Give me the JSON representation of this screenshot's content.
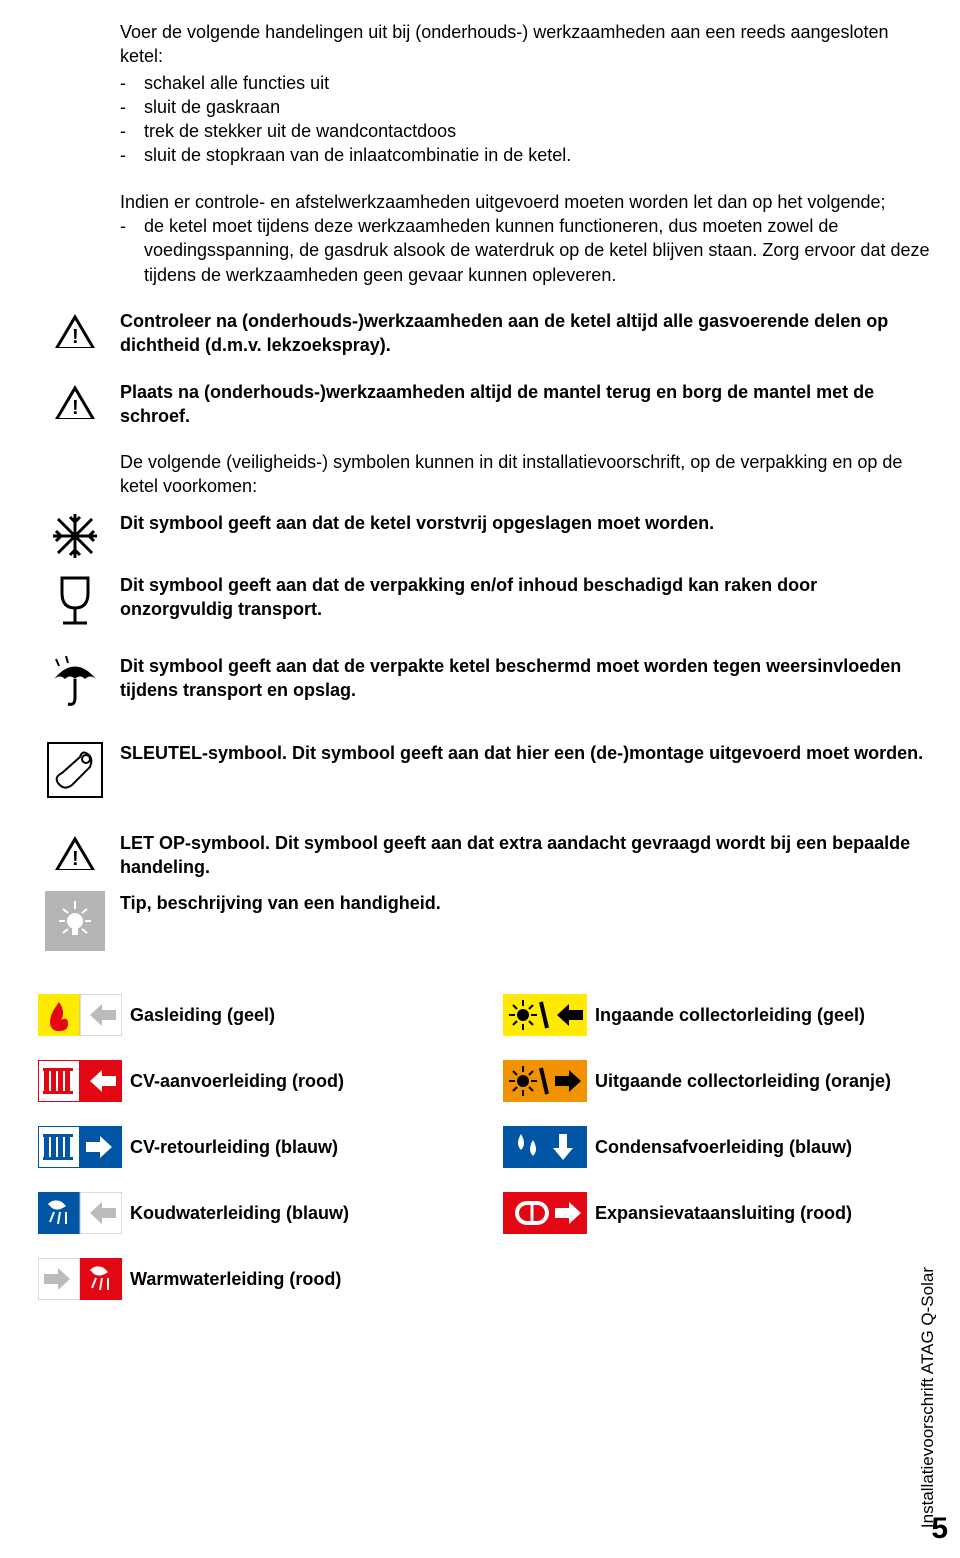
{
  "intro_para": "Voer de volgende handelingen uit bij (onderhouds-) werkzaamheden aan een reeds aangesloten ketel:",
  "intro_bullets": [
    "schakel alle functies uit",
    "sluit de gaskraan",
    "trek de stekker uit de wandcontactdoos",
    "sluit de stopkraan van de inlaatcombinatie in de ketel."
  ],
  "para2a": "Indien er controle- en afstelwerkzaamheden uitgevoerd moeten worden let dan op het volgende;",
  "para2_bullet": "de ketel moet tijdens deze werkzaamheden kunnen functioneren, dus moeten zowel de voedingsspanning, de gasdruk alsook de waterdruk op de ketel blijven staan. Zorg ervoor dat deze tijdens de werkzaamheden geen gevaar kunnen opleveren.",
  "warn1": "Controleer na (onderhouds-)werkzaamheden aan de ketel altijd alle gasvoerende delen op dichtheid (d.m.v. lekzoekspray).",
  "warn2": "Plaats na (onderhouds-)werkzaamheden altijd de mantel terug en borg de mantel met de schroef.",
  "para3": "De volgende (veiligheids-) symbolen kunnen in dit installatievoorschrift, op de verpakking en op de ketel voorkomen:",
  "sym_frost": "Dit symbool geeft aan dat de ketel vorstvrij opgeslagen moet worden.",
  "sym_glass": "Dit symbool geeft aan dat de verpakking en/of inhoud beschadigd kan raken door onzorgvuldig transport.",
  "sym_umbrella": "Dit symbool geeft aan dat de verpakte ketel beschermd moet worden tegen weersinvloeden tijdens transport en opslag.",
  "sym_wrench": "SLEUTEL-symbool. Dit symbool geeft aan dat hier een (de-)montage uitgevoerd moet worden.",
  "sym_attention": "LET OP-symbool. Dit symbool geeft aan dat extra aandacht gevraagd wordt bij een bepaalde handeling.",
  "sym_tip": "Tip, beschrijving van een handigheid.",
  "legend_left": [
    {
      "label": "Gasleiding (geel)",
      "c1": "#ffea00",
      "c2": "#ffffff",
      "type": "flame-left"
    },
    {
      "label": "CV-aanvoerleiding (rood)",
      "c1": "#ffffff",
      "c2": "#e30613",
      "type": "radiator-left"
    },
    {
      "label": "CV-retourleiding (blauw)",
      "c1": "#ffffff",
      "c2": "#0055a4",
      "type": "radiator-right"
    },
    {
      "label": "Koudwaterleiding (blauw)",
      "c1": "#0055a4",
      "c2": "#ffffff",
      "type": "shower-left"
    },
    {
      "label": "Warmwaterleiding (rood)",
      "c1": "#ffffff",
      "c2": "#e30613",
      "type": "shower-right"
    }
  ],
  "legend_right": [
    {
      "label": "Ingaande collectorleiding (geel)",
      "c1": "#ffea00",
      "c2": "#ffea00",
      "type": "sun-slash"
    },
    {
      "label": "Uitgaande collectorleiding (oranje)",
      "c1": "#f39200",
      "c2": "#f39200",
      "type": "sun-right"
    },
    {
      "label": "Condensafvoerleiding (blauw)",
      "c1": "#0055a4",
      "c2": "#0055a4",
      "type": "drops-down"
    },
    {
      "label": "Expansievataansluiting (rood)",
      "c1": "#e30613",
      "c2": "#e30613",
      "type": "expansion"
    }
  ],
  "footer_text": "Installatievoorschrift ATAG Q-Solar",
  "page_number": "5",
  "colors": {
    "yellow": "#ffea00",
    "red": "#e30613",
    "blue": "#0055a4",
    "orange": "#f39200",
    "grey": "#b5b5b5"
  }
}
